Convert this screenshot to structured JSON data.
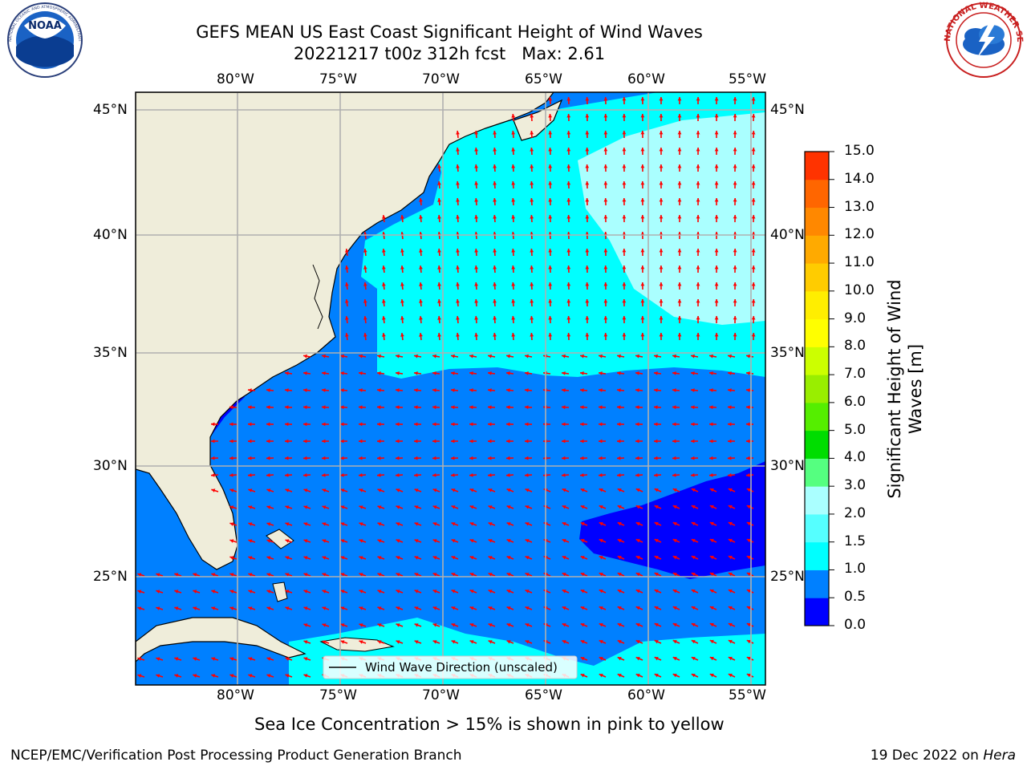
{
  "title": {
    "line1": "GEFS MEAN US East Coast Significant Height of Wind Waves",
    "line2": "20221217 t00z 312h fcst   Max: 2.61"
  },
  "logos": {
    "left": "NOAA",
    "left_ring": "NATIONAL OCEANIC AND ATMOSPHERIC ADMINISTRATION · U.S. DEPARTMENT OF COMMERCE",
    "right_ring": "NATIONAL WEATHER SERVICE"
  },
  "map": {
    "lon_labels": [
      "80°W",
      "75°W",
      "70°W",
      "65°W",
      "60°W",
      "55°W"
    ],
    "lat_labels": [
      "45°N",
      "40°N",
      "35°N",
      "30°N",
      "25°N"
    ],
    "legend_label": "Wind Wave Direction (unscaled)",
    "colors": {
      "land": "#efedda",
      "ocean_0": "#0000ff",
      "ocean_05": "#0080ff",
      "ocean_15": "#00ffff",
      "ocean_20": "#aaffff",
      "arrow": "#ff0000",
      "grid": "#b0b0b0"
    }
  },
  "colorbar": {
    "label_line1": "Significant Height of Wind",
    "label_line2": "Waves [m]",
    "ticks": [
      "15.0",
      "14.0",
      "13.0",
      "12.0",
      "11.0",
      "10.0",
      "9.0",
      "8.0",
      "7.0",
      "6.0",
      "5.0",
      "4.0",
      "3.0",
      "2.0",
      "1.5",
      "1.0",
      "0.5",
      "0.0"
    ],
    "colors": [
      "#0000ff",
      "#0080ff",
      "#00ffff",
      "#55ffff",
      "#aaffff",
      "#55ff80",
      "#00dd00",
      "#55ee00",
      "#99ee00",
      "#ccff00",
      "#ffff00",
      "#ffee00",
      "#ffcc00",
      "#ffaa00",
      "#ff8800",
      "#ff6600",
      "#ff3300"
    ]
  },
  "caption": "Sea Ice Concentration > 15% is shown in pink to yellow",
  "footer": {
    "left": "NCEP/EMC/Verification Post Processing Product Generation Branch",
    "right_date": "19 Dec 2022 on ",
    "right_host": "Hera"
  }
}
